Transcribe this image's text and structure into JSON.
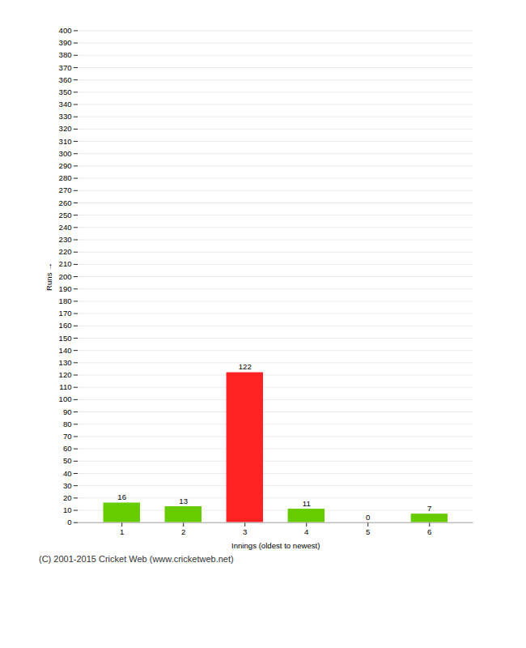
{
  "chart_data": {
    "type": "bar",
    "categories": [
      1,
      2,
      3,
      4,
      5,
      6
    ],
    "values": [
      16,
      13,
      122,
      11,
      0,
      7
    ],
    "colors": [
      "#66cc00",
      "#66cc00",
      "#ff2222",
      "#66cc00",
      "#66cc00",
      "#66cc00"
    ],
    "xlabel": "Innings (oldest to newest)",
    "ylabel": "Runs",
    "ylim": [
      0,
      400
    ],
    "yticks": [
      0,
      10,
      20,
      30,
      40,
      50,
      60,
      70,
      80,
      90,
      100,
      110,
      120,
      130,
      140,
      150,
      160,
      170,
      180,
      190,
      200,
      210,
      220,
      230,
      240,
      250,
      260,
      270,
      280,
      290,
      300,
      310,
      320,
      330,
      340,
      350,
      360,
      370,
      380,
      390,
      400
    ],
    "grid": true,
    "data_labels": true,
    "caption": "(C) 2001-2015 Cricket Web (www.cricketweb.net)"
  }
}
